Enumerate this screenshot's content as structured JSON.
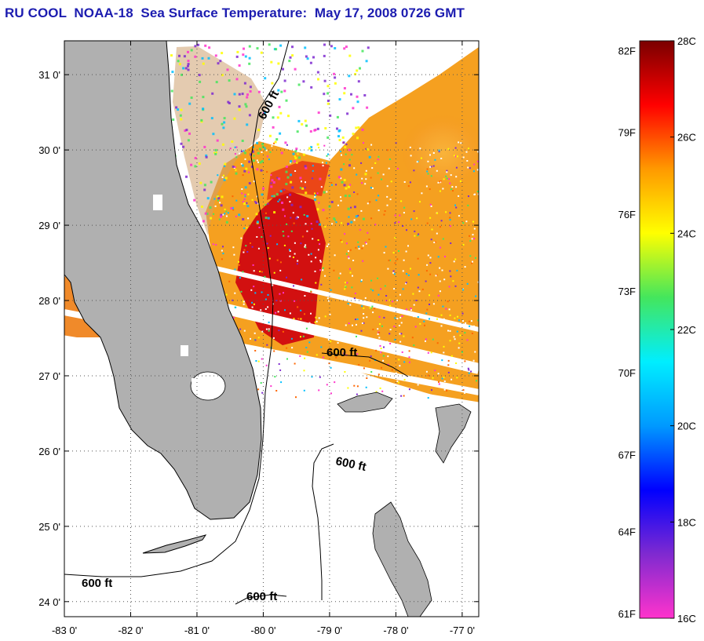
{
  "title": "RU COOL  NOAA-18  Sea Surface Temperature:  May 17, 2008 0726 GMT",
  "map": {
    "lon_range": [
      -83,
      -76.75
    ],
    "lat_range": [
      23.8,
      31.45
    ],
    "lon_ticks": [
      {
        "value": -83,
        "label": "-83 0'"
      },
      {
        "value": -82,
        "label": "-82 0'"
      },
      {
        "value": -81,
        "label": "-81 0'"
      },
      {
        "value": -80,
        "label": "-80 0'"
      },
      {
        "value": -79,
        "label": "-79 0'"
      },
      {
        "value": -78,
        "label": "-78 0'"
      },
      {
        "value": -77,
        "label": "-77 0'"
      }
    ],
    "lat_ticks": [
      {
        "value": 31,
        "label": "31 0'"
      },
      {
        "value": 30,
        "label": "30 0'"
      },
      {
        "value": 29,
        "label": "29 0'"
      },
      {
        "value": 28,
        "label": "28 0'"
      },
      {
        "value": 27,
        "label": "27 0'"
      },
      {
        "value": 26,
        "label": "26 0'"
      },
      {
        "value": 25,
        "label": "25 0'"
      },
      {
        "value": 24,
        "label": "24 0'"
      }
    ],
    "grid": "dotted",
    "land_color": "#b0b0b0",
    "contour_labels": [
      "600 ft",
      "600 ft",
      "600 ft",
      "600 ft",
      "600 ft"
    ]
  },
  "colorbar": {
    "min_c": 16,
    "max_c": 28,
    "celsius_labels": [
      {
        "value": 28,
        "label": "28C"
      },
      {
        "value": 26,
        "label": "26C"
      },
      {
        "value": 24,
        "label": "24C"
      },
      {
        "value": 22,
        "label": "22C"
      },
      {
        "value": 20,
        "label": "20C"
      },
      {
        "value": 18,
        "label": "18C"
      },
      {
        "value": 16,
        "label": "16C"
      }
    ],
    "fahrenheit_labels": [
      {
        "value_c": 27.8,
        "label": "82F"
      },
      {
        "value_c": 26.1,
        "label": "79F"
      },
      {
        "value_c": 24.4,
        "label": "76F"
      },
      {
        "value_c": 22.8,
        "label": "73F"
      },
      {
        "value_c": 21.1,
        "label": "70F"
      },
      {
        "value_c": 19.4,
        "label": "67F"
      },
      {
        "value_c": 17.8,
        "label": "64F"
      },
      {
        "value_c": 16.1,
        "label": "61F"
      }
    ],
    "stops": [
      "#ff33cc",
      "#7f2ad0",
      "#0000ff",
      "#0099ff",
      "#00eeff",
      "#44e65c",
      "#ffff00",
      "#ff9900",
      "#ff0000",
      "#7a0000"
    ]
  }
}
